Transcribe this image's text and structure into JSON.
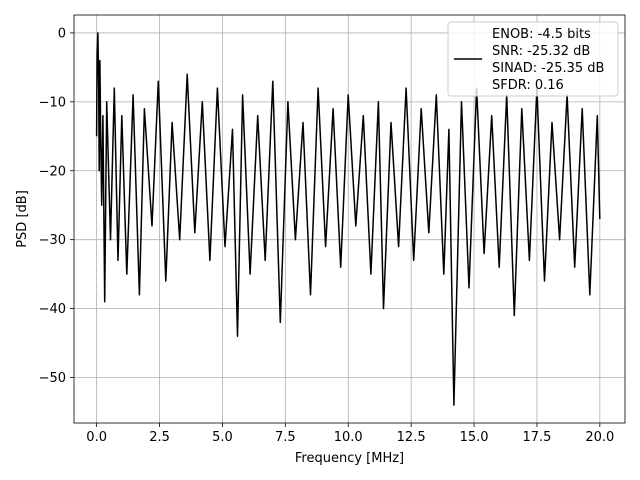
{
  "chart_data": {
    "type": "line",
    "title": "",
    "xlabel": "Frequency [MHz]",
    "ylabel": "PSD [dB]",
    "xlim": [
      -0.9,
      21.0
    ],
    "ylim": [
      -56.6,
      2.6
    ],
    "x_ticks": [
      0.0,
      2.5,
      5.0,
      7.5,
      10.0,
      12.5,
      15.0,
      17.5,
      20.0
    ],
    "x_tick_labels": [
      "0.0",
      "2.5",
      "5.0",
      "7.5",
      "10.0",
      "12.5",
      "15.0",
      "17.5",
      "20.0"
    ],
    "y_ticks": [
      0,
      -10,
      -20,
      -30,
      -40,
      -50
    ],
    "y_tick_labels": [
      "0",
      "−10",
      "−20",
      "−30",
      "−40",
      "−50"
    ],
    "grid": true,
    "legend_position": "top-right",
    "legend_entries": [
      "ENOB: -4.5 bits",
      "SNR: -25.32 dB",
      "SINAD: -25.35 dB",
      "SFDR: 0.16"
    ],
    "series": [
      {
        "color": "#000000",
        "x": [
          0.0,
          0.02,
          0.05,
          0.08,
          0.1,
          0.13,
          0.16,
          0.2,
          0.25,
          0.32,
          0.4,
          0.55,
          0.7,
          0.85,
          1.0,
          1.2,
          1.45,
          1.7,
          1.9,
          2.2,
          2.45,
          2.75,
          3.0,
          3.3,
          3.6,
          3.9,
          4.2,
          4.5,
          4.8,
          5.1,
          5.4,
          5.6,
          5.8,
          6.1,
          6.4,
          6.7,
          7.0,
          7.3,
          7.6,
          7.9,
          8.2,
          8.5,
          8.8,
          9.1,
          9.4,
          9.7,
          10.0,
          10.3,
          10.6,
          10.9,
          11.2,
          11.4,
          11.7,
          12.0,
          12.3,
          12.6,
          12.9,
          13.2,
          13.5,
          13.8,
          14.0,
          14.2,
          14.5,
          14.8,
          15.1,
          15.4,
          15.7,
          16.0,
          16.3,
          16.6,
          16.9,
          17.2,
          17.5,
          17.8,
          18.1,
          18.4,
          18.7,
          19.0,
          19.3,
          19.6,
          19.9,
          20.0
        ],
        "y": [
          -15,
          -3,
          0,
          -8,
          -20,
          -4,
          -15,
          -25,
          -12,
          -39,
          -10,
          -30,
          -8,
          -33,
          -12,
          -35,
          -9,
          -38,
          -11,
          -28,
          -7,
          -36,
          -13,
          -30,
          -6,
          -29,
          -10,
          -33,
          -8,
          -31,
          -14,
          -44,
          -9,
          -35,
          -12,
          -33,
          -7,
          -42,
          -10,
          -30,
          -13,
          -38,
          -8,
          -31,
          -11,
          -34,
          -9,
          -28,
          -12,
          -35,
          -10,
          -40,
          -13,
          -31,
          -8,
          -33,
          -11,
          -29,
          -9,
          -35,
          -14,
          -54,
          -10,
          -37,
          -8,
          -32,
          -12,
          -34,
          -9,
          -41,
          -11,
          -33,
          -8,
          -36,
          -13,
          -30,
          -9,
          -34,
          -11,
          -38,
          -12,
          -27
        ]
      }
    ]
  }
}
